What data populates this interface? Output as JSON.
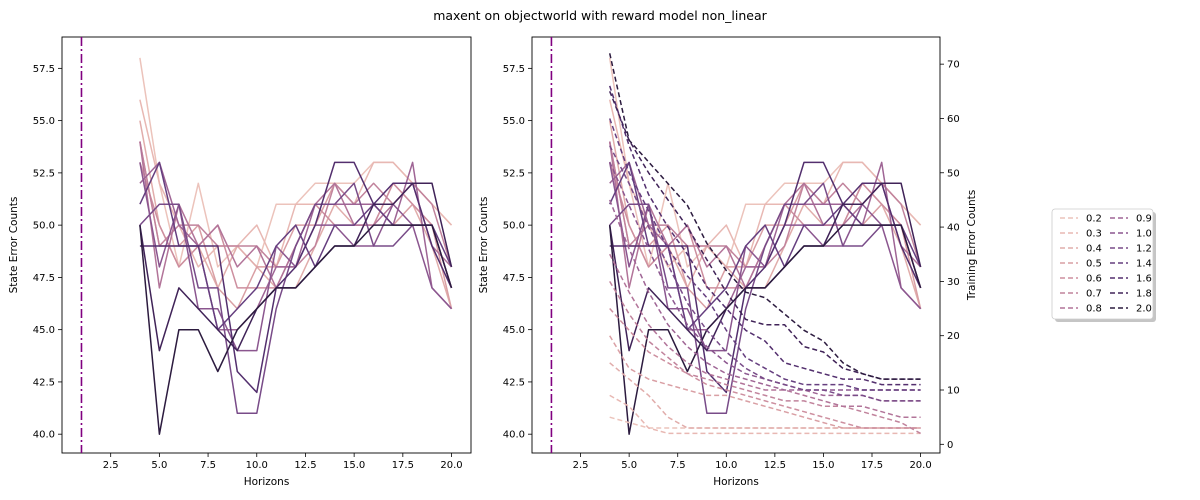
{
  "chart_data": {
    "type": "line",
    "title": "maxent on objectworld with reward model non_linear",
    "vline_x": 1,
    "legend": {
      "placement": "right",
      "entries": [
        "0.2",
        "0.3",
        "0.4",
        "0.5",
        "0.6",
        "0.7",
        "0.8",
        "0.9",
        "1.0",
        "1.2",
        "1.4",
        "1.6",
        "1.8",
        "2.0"
      ],
      "colors": [
        "#ecc3bb",
        "#e8b8b3",
        "#e1adab",
        "#d99fa4",
        "#cd8f9f",
        "#c1839c",
        "#b27499",
        "#9f6595",
        "#8b568f",
        "#784b88",
        "#653e7f",
        "#532f6e",
        "#402358",
        "#2c1b3f"
      ]
    },
    "panels": [
      {
        "name": "left",
        "xlabel": "Horizons",
        "ylabel": "State Error Counts",
        "xlim": [
          0,
          21
        ],
        "ylim": [
          39.1,
          59.0
        ],
        "xticks": [
          "2.5",
          "5.0",
          "7.5",
          "10.0",
          "12.5",
          "15.0",
          "17.5",
          "20.0"
        ],
        "yticks": [
          "40.0",
          "42.5",
          "45.0",
          "47.5",
          "50.0",
          "52.5",
          "55.0",
          "57.5"
        ],
        "x": [
          4,
          5,
          6,
          7,
          8,
          9,
          10,
          11,
          12,
          13,
          14,
          15,
          16,
          17,
          18,
          19,
          20
        ],
        "series": [
          {
            "name": "0.2",
            "values": [
              58,
              52,
              48,
              52,
              48,
              49,
              48,
              51,
              51,
              52,
              52,
              52,
              53,
              53,
              52,
              51,
              50
            ]
          },
          {
            "name": "0.3",
            "values": [
              56,
              52,
              50,
              48,
              49,
              49,
              50,
              48,
              51,
              51,
              51,
              51,
              53,
              53,
              52,
              51,
              50
            ]
          },
          {
            "name": "0.4",
            "values": [
              55,
              50,
              48,
              49,
              47,
              49,
              48,
              47,
              47,
              49,
              51,
              50,
              50,
              52,
              51,
              49,
              46
            ]
          },
          {
            "name": "0.5",
            "values": [
              54,
              49,
              49,
              50,
              47,
              46,
              48,
              48,
              50,
              50,
              52,
              51,
              51,
              50,
              51,
              50,
              46
            ]
          },
          {
            "name": "0.6",
            "values": [
              53,
              50,
              48,
              49,
              50,
              47,
              47,
              47,
              49,
              51,
              50,
              50,
              50,
              52,
              51,
              50,
              47
            ]
          },
          {
            "name": "0.7",
            "values": [
              54,
              49,
              50,
              50,
              49,
              49,
              49,
              48,
              48,
              49,
              52,
              51,
              52,
              51,
              52,
              51,
              48
            ]
          },
          {
            "name": "0.8",
            "values": [
              54,
              47,
              51,
              49,
              50,
              48,
              49,
              47,
              49,
              51,
              52,
              50,
              50,
              51,
              52,
              49,
              48
            ]
          },
          {
            "name": "0.9",
            "values": [
              52,
              53,
              50,
              49,
              45,
              45,
              46,
              48,
              48,
              51,
              51,
              51,
              51,
              50,
              53,
              47,
              46
            ]
          },
          {
            "name": "1.0",
            "values": [
              53,
              48,
              51,
              46,
              46,
              44,
              44,
              49,
              48,
              50,
              50,
              49,
              49,
              51,
              50,
              47,
              46
            ]
          },
          {
            "name": "1.2",
            "values": [
              50,
              51,
              51,
              47,
              47,
              41,
              41,
              46,
              49,
              51,
              51,
              52,
              49,
              49,
              50,
              50,
              47
            ]
          },
          {
            "name": "1.4",
            "values": [
              51,
              53,
              49,
              49,
              45,
              46,
              47,
              49,
              50,
              48,
              50,
              50,
              51,
              50,
              50,
              50,
              48
            ]
          },
          {
            "name": "1.6",
            "values": [
              49,
              49,
              49,
              49,
              49,
              43,
              42,
              47,
              48,
              50,
              53,
              53,
              51,
              52,
              52,
              49,
              47
            ]
          },
          {
            "name": "1.8",
            "values": [
              50,
              44,
              47,
              46,
              45,
              44,
              46,
              47,
              47,
              48,
              49,
              49,
              51,
              51,
              52,
              52,
              48
            ]
          },
          {
            "name": "2.0",
            "values": [
              50,
              40,
              45,
              45,
              43,
              45,
              46,
              47,
              47,
              48,
              49,
              49,
              50,
              50,
              50,
              50,
              47
            ]
          }
        ]
      },
      {
        "name": "right",
        "xlabel": "Horizons",
        "ylabel": "State Error Counts",
        "ylabel_right": "Training Error Counts",
        "xlim": [
          0,
          21
        ],
        "ylim": [
          39.1,
          59.0
        ],
        "ylim_right": [
          -1.6,
          75.0
        ],
        "xticks": [
          "2.5",
          "5.0",
          "7.5",
          "10.0",
          "12.5",
          "15.0",
          "17.5",
          "20.0"
        ],
        "yticks": [
          "40.0",
          "42.5",
          "45.0",
          "47.5",
          "50.0",
          "52.5",
          "55.0",
          "57.5"
        ],
        "yticks_right": [
          "0",
          "10",
          "20",
          "30",
          "40",
          "50",
          "60",
          "70"
        ],
        "x": [
          4,
          5,
          6,
          7,
          8,
          9,
          10,
          11,
          12,
          13,
          14,
          15,
          16,
          17,
          18,
          19,
          20
        ],
        "series_dashed": [
          {
            "name": "0.2",
            "values": [
              5,
              4,
              3,
              3,
              3,
              3,
              3,
              3,
              3,
              3,
              3,
              3,
              3,
              3,
              3,
              3,
              3
            ]
          },
          {
            "name": "0.3",
            "values": [
              9,
              7,
              3,
              2,
              2,
              2,
              2,
              2,
              2,
              2,
              2,
              2,
              2,
              2,
              2,
              2,
              2
            ]
          },
          {
            "name": "0.4",
            "values": [
              15,
              12,
              9,
              5,
              3,
              3,
              3,
              3,
              3,
              3,
              3,
              3,
              3,
              3,
              3,
              3,
              3
            ]
          },
          {
            "name": "0.5",
            "values": [
              20,
              14,
              12,
              11,
              10,
              9,
              9,
              8,
              7,
              6,
              5,
              4,
              3,
              3,
              3,
              3,
              3
            ]
          },
          {
            "name": "0.6",
            "values": [
              25,
              21,
              17,
              15,
              13,
              11,
              10,
              9,
              8,
              7,
              6,
              5,
              4,
              3,
              3,
              3,
              3
            ]
          },
          {
            "name": "0.7",
            "values": [
              30,
              24,
              19,
              16,
              13,
              12,
              11,
              10,
              9,
              8,
              8,
              7,
              7,
              6,
              5,
              4,
              2
            ]
          },
          {
            "name": "0.8",
            "values": [
              35,
              28,
              22,
              18,
              15,
              13,
              12,
              11,
              10,
              10,
              9,
              8,
              7,
              7,
              6,
              5,
              5
            ]
          },
          {
            "name": "0.9",
            "values": [
              45,
              36,
              28,
              22,
              18,
              15,
              13,
              12,
              11,
              10,
              10,
              9,
              9,
              9,
              8,
              8,
              8
            ]
          },
          {
            "name": "1.0",
            "values": [
              52,
              44,
              36,
              28,
              22,
              18,
              15,
              13,
              12,
              11,
              10,
              10,
              10,
              10,
              10,
              10,
              10
            ]
          },
          {
            "name": "1.2",
            "values": [
              55,
              48,
              40,
              33,
              26,
              21,
              17,
              14,
              12,
              11,
              10,
              10,
              9,
              9,
              8,
              8,
              8
            ]
          },
          {
            "name": "1.4",
            "values": [
              60,
              50,
              43,
              36,
              31,
              27,
              21,
              16,
              14,
              12,
              11,
              11,
              11,
              10,
              10,
              10,
              10
            ]
          },
          {
            "name": "1.6",
            "values": [
              66,
              55,
              46,
              40,
              35,
              29,
              25,
              21,
              19,
              15,
              14,
              13,
              12,
              12,
              11,
              11,
              11
            ]
          },
          {
            "name": "1.8",
            "values": [
              65,
              56,
              50,
              45,
              40,
              34,
              28,
              23,
              22,
              22,
              18,
              17,
              14,
              13,
              12,
              12,
              12
            ]
          },
          {
            "name": "2.0",
            "values": [
              72,
              56,
              52,
              48,
              44,
              37,
              32,
              28,
              27,
              24,
              21,
              19,
              15,
              13,
              12,
              12,
              12
            ]
          }
        ]
      }
    ]
  }
}
